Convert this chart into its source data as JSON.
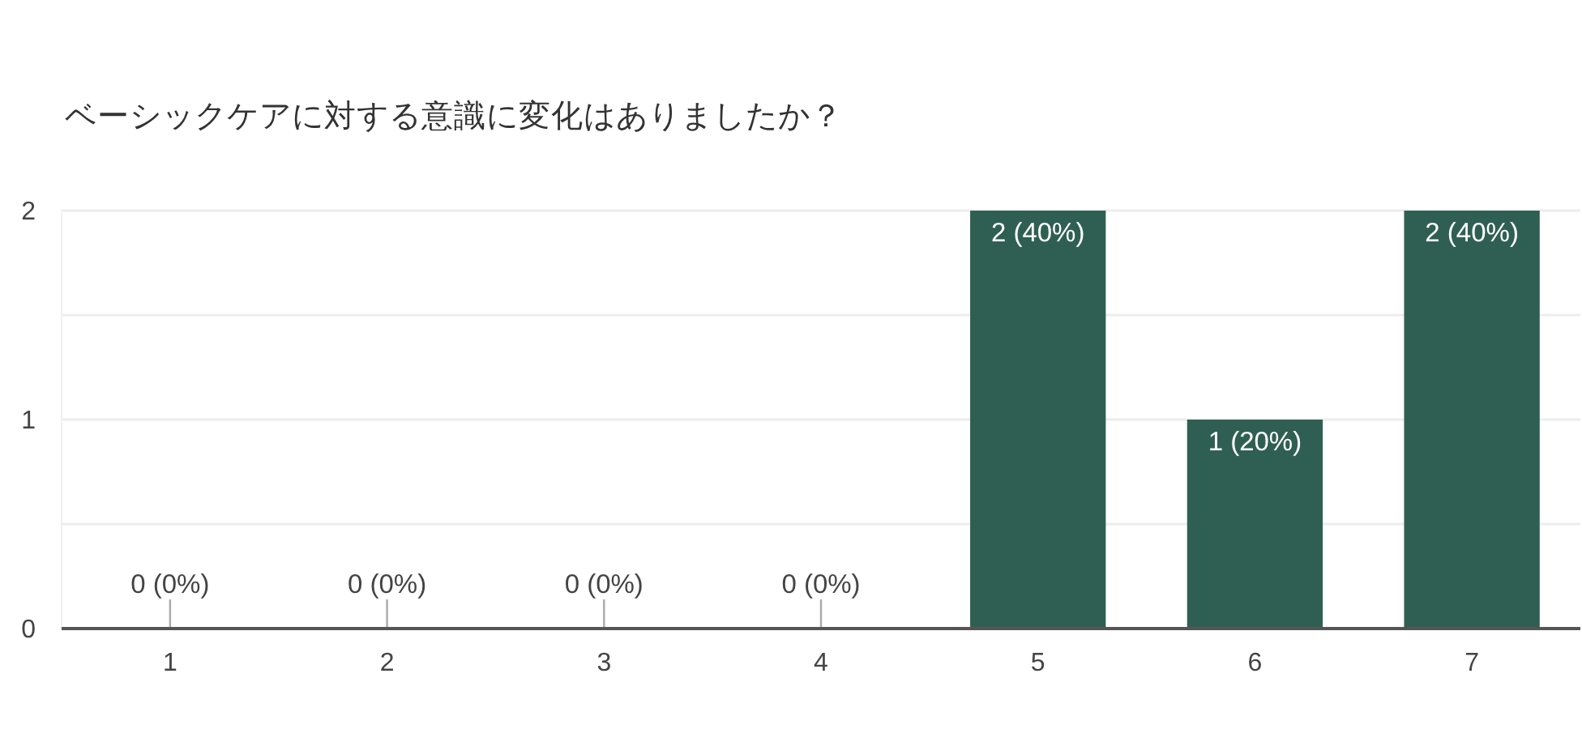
{
  "chart_data": {
    "type": "bar",
    "title": "ベーシックケアに対する意識に変化はありましたか？",
    "categories": [
      "1",
      "2",
      "3",
      "4",
      "5",
      "6",
      "7"
    ],
    "values": [
      0,
      0,
      0,
      0,
      2,
      1,
      2
    ],
    "color": "#2f5f53",
    "value_labels": [
      "0 (0%)",
      "0 (0%)",
      "0 (0%)",
      "0 (0%)",
      "2 (40%)",
      "1 (20%)",
      "2 (40%)"
    ],
    "ylim": [
      0,
      2
    ],
    "yticks": [
      0,
      {
        "value": 0.5,
        "label": null
      },
      1,
      {
        "value": 1.5,
        "label": null
      },
      2
    ],
    "grid": "y"
  }
}
